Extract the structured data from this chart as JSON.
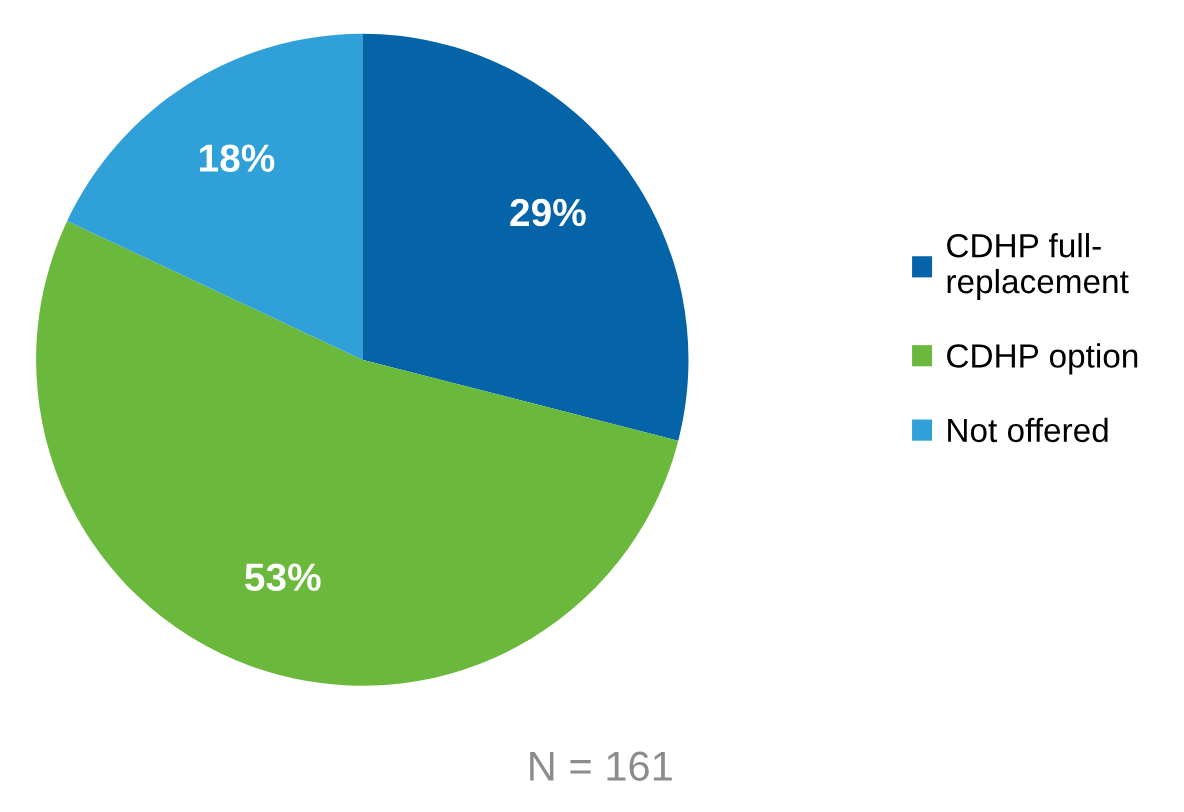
{
  "chart_data": {
    "type": "pie",
    "categories": [
      "CDHP full-\nreplacement",
      "CDHP option",
      "Not offered"
    ],
    "values": [
      29,
      53,
      18
    ],
    "colors": [
      "#0563a8",
      "#6ab93c",
      "#2fa0d8"
    ],
    "value_labels": [
      "29%",
      "53%",
      "18%"
    ],
    "legend": "right",
    "annotations": [
      "N = 161"
    ]
  }
}
